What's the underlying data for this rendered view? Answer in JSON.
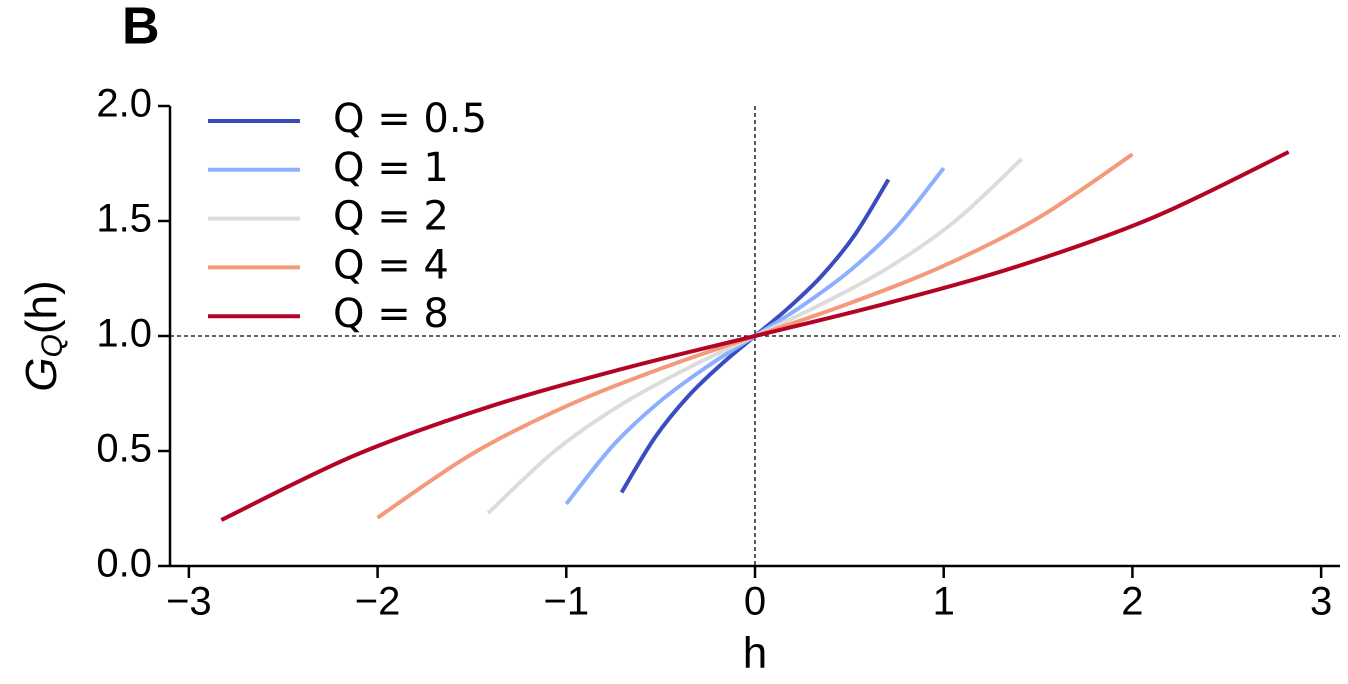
{
  "chart_data": {
    "type": "line",
    "panel_label": "B",
    "xlabel": "h",
    "ylabel": "G_Q(h)",
    "xlim": [
      -3.1,
      3.1
    ],
    "ylim": [
      0,
      2
    ],
    "xticks": [
      {
        "value": -3,
        "label": "−3"
      },
      {
        "value": -2,
        "label": "−2"
      },
      {
        "value": -1,
        "label": "−1"
      },
      0,
      1,
      2,
      3
    ],
    "yticks": [
      {
        "value": 0,
        "label": "0.0"
      },
      {
        "value": 0.5,
        "label": "0.5"
      },
      {
        "value": 1,
        "label": "1.0"
      },
      {
        "value": 1.5,
        "label": "1.5"
      },
      {
        "value": 2,
        "label": "2.0"
      }
    ],
    "reference_lines": {
      "x": 0,
      "y": 1
    },
    "legend": "upper left",
    "series": [
      {
        "name": "Q = 0.5",
        "color": "#3b4cc0",
        "x": [
          -0.707,
          -0.53,
          -0.354,
          -0.177,
          0,
          0.177,
          0.354,
          0.53,
          0.707
        ],
        "values": [
          0.32,
          0.559,
          0.738,
          0.878,
          1,
          1.122,
          1.262,
          1.441,
          1.68
        ]
      },
      {
        "name": "Q = 1",
        "color": "#8db0fe",
        "x": [
          -1,
          -0.75,
          -0.5,
          -0.25,
          0,
          0.25,
          0.5,
          0.75,
          1
        ],
        "values": [
          0.27,
          0.526,
          0.718,
          0.869,
          1,
          1.131,
          1.282,
          1.474,
          1.73
        ]
      },
      {
        "name": "Q = 2",
        "color": "#dddcdc",
        "x": [
          -1.414,
          -1.061,
          -0.707,
          -0.354,
          0,
          0.354,
          0.707,
          1.061,
          1.414
        ],
        "values": [
          0.23,
          0.5,
          0.703,
          0.861,
          1,
          1.139,
          1.297,
          1.5,
          1.77
        ]
      },
      {
        "name": "Q = 4",
        "color": "#f49a7b",
        "x": [
          -2,
          -1.5,
          -1,
          -0.5,
          0,
          0.5,
          1,
          1.5,
          2
        ],
        "values": [
          0.21,
          0.487,
          0.695,
          0.858,
          1,
          1.142,
          1.305,
          1.513,
          1.79
        ]
      },
      {
        "name": "Q = 8",
        "color": "#b40426",
        "x": [
          -2.828,
          -2.121,
          -1.414,
          -0.707,
          0,
          0.707,
          1.414,
          2.121,
          2.828
        ],
        "values": [
          0.2,
          0.481,
          0.691,
          0.856,
          1,
          1.144,
          1.309,
          1.519,
          1.8
        ]
      }
    ]
  }
}
